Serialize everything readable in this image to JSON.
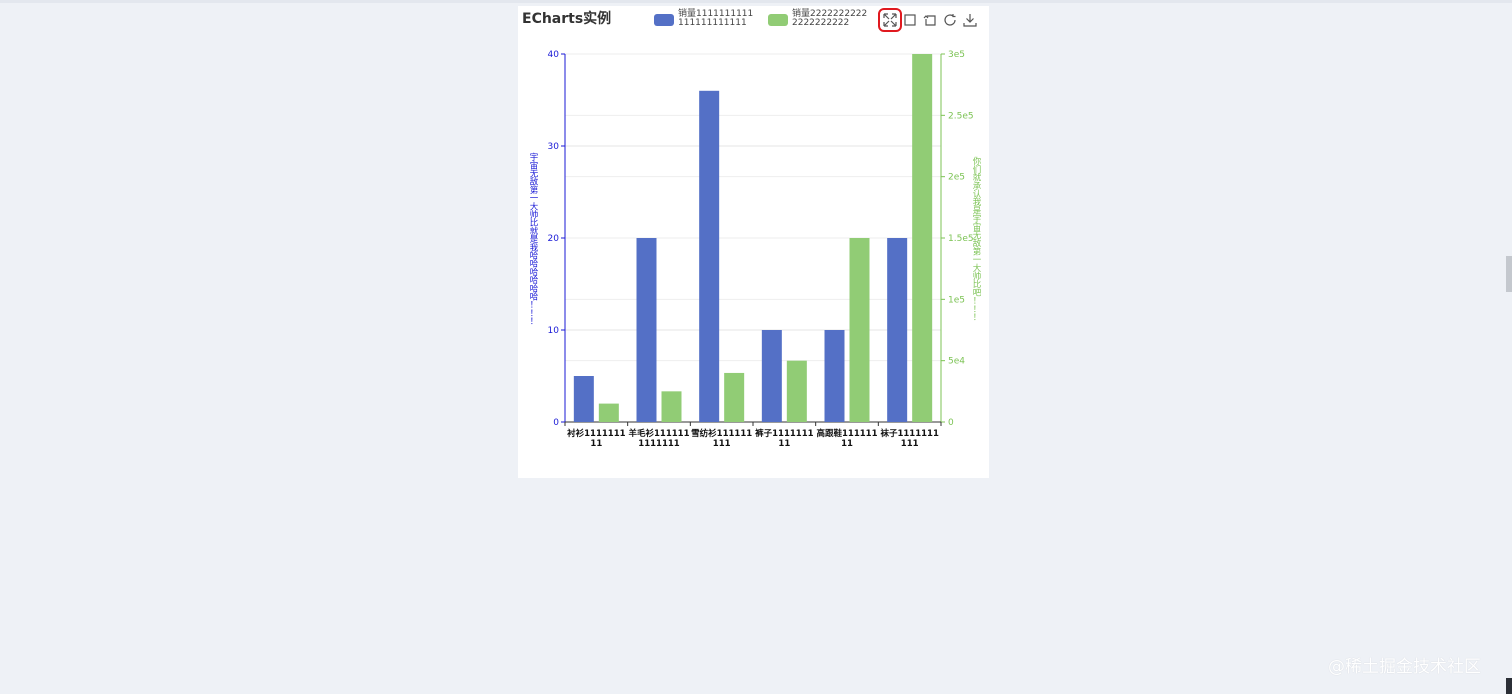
{
  "chart_data": {
    "type": "bar",
    "title": "ECharts实例",
    "categories": [
      "衬衫111111111",
      "羊毛衫1111111111111",
      "雪纺衫111111111",
      "裤子111111111",
      "高跟鞋11111111",
      "袜子1111111111"
    ],
    "series": [
      {
        "name": "销量1111111111111111111111",
        "values": [
          5,
          20,
          36,
          10,
          10,
          20
        ],
        "axis": "left",
        "color": "#5470c6"
      },
      {
        "name": "销量22222222222222222222",
        "values": [
          15000,
          25000,
          40000,
          50000,
          150000,
          300000
        ],
        "axis": "right",
        "color": "#91cc75"
      }
    ],
    "y_left": {
      "label": "宇宙无敌第一大帅比就是我哈哈哈哈哈哈！！！",
      "min": 0,
      "max": 40,
      "ticks": [
        "0",
        "10",
        "20",
        "30",
        "40"
      ],
      "color": "#1a1ad6"
    },
    "y_right": {
      "label": "你们就承认我是宇宙无敌第一大帅比吧！！！",
      "min": 0,
      "max": 300000,
      "ticks": [
        "0",
        "5e4",
        "1e5",
        "1.5e5",
        "2e5",
        "2.5e5",
        "3e5"
      ],
      "color": "#7cc354"
    },
    "grid": true,
    "legend_position": "top-center"
  },
  "toolbox": {
    "icons": [
      "fullscreen-icon",
      "square-icon",
      "restore-icon",
      "refresh-icon",
      "download-icon"
    ]
  },
  "watermark": "@稀土掘金技术社区"
}
